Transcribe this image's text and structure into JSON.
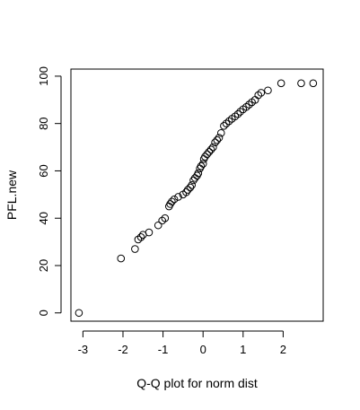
{
  "chart_data": {
    "type": "scatter",
    "title": "",
    "xlabel": "Q-Q plot for norm dist",
    "ylabel": "PFL.new",
    "xlim": [
      -3.3,
      3.0
    ],
    "ylim": [
      -3.5,
      103.0
    ],
    "xticks": [
      -3,
      -2,
      -1,
      0,
      1,
      2
    ],
    "yticks": [
      0,
      20,
      40,
      60,
      80,
      100
    ],
    "grid": false,
    "legend": "none",
    "marker": "open-circle",
    "points": [
      {
        "x": -3.1,
        "y": 0
      },
      {
        "x": -2.05,
        "y": 23
      },
      {
        "x": -1.7,
        "y": 27
      },
      {
        "x": -1.62,
        "y": 31
      },
      {
        "x": -1.55,
        "y": 32
      },
      {
        "x": -1.5,
        "y": 33
      },
      {
        "x": -1.35,
        "y": 34
      },
      {
        "x": -1.12,
        "y": 37
      },
      {
        "x": -1.02,
        "y": 39
      },
      {
        "x": -0.95,
        "y": 40
      },
      {
        "x": -0.85,
        "y": 45
      },
      {
        "x": -0.82,
        "y": 46
      },
      {
        "x": -0.78,
        "y": 47
      },
      {
        "x": -0.72,
        "y": 48
      },
      {
        "x": -0.62,
        "y": 49
      },
      {
        "x": -0.5,
        "y": 50
      },
      {
        "x": -0.42,
        "y": 51
      },
      {
        "x": -0.38,
        "y": 52
      },
      {
        "x": -0.32,
        "y": 53
      },
      {
        "x": -0.28,
        "y": 54
      },
      {
        "x": -0.24,
        "y": 56
      },
      {
        "x": -0.2,
        "y": 57
      },
      {
        "x": -0.15,
        "y": 58
      },
      {
        "x": -0.12,
        "y": 59
      },
      {
        "x": -0.08,
        "y": 61
      },
      {
        "x": -0.05,
        "y": 62
      },
      {
        "x": 0.0,
        "y": 63
      },
      {
        "x": 0.02,
        "y": 65
      },
      {
        "x": 0.05,
        "y": 66
      },
      {
        "x": 0.1,
        "y": 67
      },
      {
        "x": 0.15,
        "y": 68
      },
      {
        "x": 0.2,
        "y": 69
      },
      {
        "x": 0.25,
        "y": 70
      },
      {
        "x": 0.3,
        "y": 72
      },
      {
        "x": 0.35,
        "y": 73
      },
      {
        "x": 0.4,
        "y": 74
      },
      {
        "x": 0.45,
        "y": 76
      },
      {
        "x": 0.52,
        "y": 79
      },
      {
        "x": 0.58,
        "y": 80
      },
      {
        "x": 0.65,
        "y": 81
      },
      {
        "x": 0.72,
        "y": 82
      },
      {
        "x": 0.8,
        "y": 83
      },
      {
        "x": 0.87,
        "y": 84
      },
      {
        "x": 0.93,
        "y": 85
      },
      {
        "x": 1.0,
        "y": 86
      },
      {
        "x": 1.08,
        "y": 87
      },
      {
        "x": 1.15,
        "y": 88
      },
      {
        "x": 1.22,
        "y": 89
      },
      {
        "x": 1.3,
        "y": 90
      },
      {
        "x": 1.38,
        "y": 92
      },
      {
        "x": 1.45,
        "y": 93
      },
      {
        "x": 1.62,
        "y": 94
      },
      {
        "x": 1.95,
        "y": 97
      },
      {
        "x": 2.45,
        "y": 97
      },
      {
        "x": 2.75,
        "y": 97
      }
    ]
  }
}
